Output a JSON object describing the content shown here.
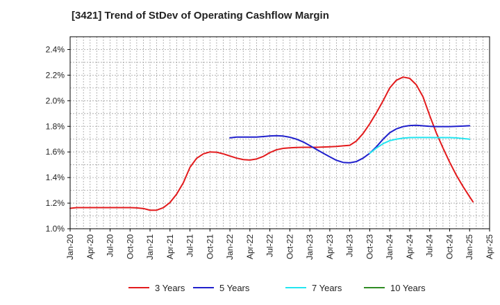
{
  "chart_data": {
    "type": "line",
    "title": "[3421]  Trend of StDev of Operating Cashflow Margin",
    "xlabel": "",
    "ylabel": "",
    "y_tick_labels": [
      "1.0%",
      "1.2%",
      "1.4%",
      "1.6%",
      "1.8%",
      "2.0%",
      "2.2%",
      "2.4%"
    ],
    "y_ticks": [
      1.0,
      1.2,
      1.4,
      1.6,
      1.8,
      2.0,
      2.2,
      2.4
    ],
    "ylim": [
      1.0,
      2.5
    ],
    "x_tick_labels": [
      "Jan-20",
      "Apr-20",
      "Jul-20",
      "Oct-20",
      "Jan-21",
      "Apr-21",
      "Jul-21",
      "Oct-21",
      "Jan-22",
      "Apr-22",
      "Jul-22",
      "Oct-22",
      "Jan-23",
      "Apr-23",
      "Jul-23",
      "Oct-23",
      "Jan-24",
      "Apr-24",
      "Jul-24",
      "Oct-24",
      "Jan-25",
      "Apr-25"
    ],
    "xlim_quarters": [
      0,
      21
    ],
    "grid": true,
    "legend_position": "bottom",
    "series": [
      {
        "name": "3 Years",
        "color": "#e31a1c",
        "points": [
          [
            0,
            1.16
          ],
          [
            0.33,
            1.165
          ],
          [
            0.67,
            1.165
          ],
          [
            1,
            1.165
          ],
          [
            1.33,
            1.165
          ],
          [
            1.67,
            1.165
          ],
          [
            2,
            1.165
          ],
          [
            2.33,
            1.165
          ],
          [
            2.67,
            1.165
          ],
          [
            3,
            1.165
          ],
          [
            3.33,
            1.163
          ],
          [
            3.67,
            1.158
          ],
          [
            4,
            1.145
          ],
          [
            4.33,
            1.145
          ],
          [
            4.67,
            1.165
          ],
          [
            5,
            1.205
          ],
          [
            5.33,
            1.27
          ],
          [
            5.67,
            1.36
          ],
          [
            6,
            1.48
          ],
          [
            6.33,
            1.55
          ],
          [
            6.67,
            1.585
          ],
          [
            7,
            1.6
          ],
          [
            7.33,
            1.598
          ],
          [
            7.67,
            1.585
          ],
          [
            8,
            1.568
          ],
          [
            8.33,
            1.552
          ],
          [
            8.67,
            1.54
          ],
          [
            9,
            1.537
          ],
          [
            9.33,
            1.545
          ],
          [
            9.67,
            1.565
          ],
          [
            10,
            1.595
          ],
          [
            10.33,
            1.617
          ],
          [
            10.67,
            1.628
          ],
          [
            11,
            1.632
          ],
          [
            11.33,
            1.635
          ],
          [
            11.67,
            1.636
          ],
          [
            12,
            1.636
          ],
          [
            12.33,
            1.636
          ],
          [
            12.67,
            1.638
          ],
          [
            13,
            1.64
          ],
          [
            13.33,
            1.643
          ],
          [
            13.67,
            1.648
          ],
          [
            14,
            1.652
          ],
          [
            14.33,
            1.685
          ],
          [
            14.67,
            1.745
          ],
          [
            15,
            1.82
          ],
          [
            15.33,
            1.905
          ],
          [
            15.67,
            2.0
          ],
          [
            16,
            2.1
          ],
          [
            16.33,
            2.16
          ],
          [
            16.67,
            2.185
          ],
          [
            17,
            2.175
          ],
          [
            17.33,
            2.125
          ],
          [
            17.67,
            2.03
          ],
          [
            18,
            1.885
          ],
          [
            18.33,
            1.75
          ],
          [
            18.67,
            1.63
          ],
          [
            19,
            1.52
          ],
          [
            19.33,
            1.42
          ],
          [
            19.67,
            1.33
          ],
          [
            20,
            1.25
          ],
          [
            20.17,
            1.21
          ]
        ]
      },
      {
        "name": "5 Years",
        "color": "#1f1fcc",
        "points": [
          [
            8,
            1.71
          ],
          [
            8.33,
            1.716
          ],
          [
            8.67,
            1.716
          ],
          [
            9,
            1.716
          ],
          [
            9.33,
            1.716
          ],
          [
            9.67,
            1.72
          ],
          [
            10,
            1.725
          ],
          [
            10.33,
            1.727
          ],
          [
            10.67,
            1.724
          ],
          [
            11,
            1.715
          ],
          [
            11.33,
            1.7
          ],
          [
            11.67,
            1.678
          ],
          [
            12,
            1.65
          ],
          [
            12.33,
            1.62
          ],
          [
            12.67,
            1.59
          ],
          [
            13,
            1.562
          ],
          [
            13.33,
            1.535
          ],
          [
            13.67,
            1.518
          ],
          [
            14,
            1.515
          ],
          [
            14.33,
            1.525
          ],
          [
            14.67,
            1.552
          ],
          [
            15,
            1.59
          ],
          [
            15.33,
            1.64
          ],
          [
            15.67,
            1.7
          ],
          [
            16,
            1.75
          ],
          [
            16.33,
            1.78
          ],
          [
            16.67,
            1.798
          ],
          [
            17,
            1.806
          ],
          [
            17.33,
            1.808
          ],
          [
            17.67,
            1.804
          ],
          [
            18,
            1.8
          ],
          [
            18.33,
            1.798
          ],
          [
            18.67,
            1.798
          ],
          [
            19,
            1.798
          ],
          [
            19.33,
            1.8
          ],
          [
            19.67,
            1.802
          ],
          [
            20,
            1.805
          ]
        ]
      },
      {
        "name": "7 Years",
        "color": "#22e5f0",
        "points": [
          [
            15,
            1.59
          ],
          [
            15.33,
            1.63
          ],
          [
            15.67,
            1.665
          ],
          [
            16,
            1.688
          ],
          [
            16.33,
            1.7
          ],
          [
            16.67,
            1.708
          ],
          [
            17,
            1.712
          ],
          [
            17.33,
            1.713
          ],
          [
            17.67,
            1.713
          ],
          [
            18,
            1.713
          ],
          [
            18.33,
            1.712
          ],
          [
            18.67,
            1.712
          ],
          [
            19,
            1.712
          ],
          [
            19.33,
            1.71
          ],
          [
            19.67,
            1.705
          ],
          [
            20,
            1.7
          ]
        ]
      },
      {
        "name": "10 Years",
        "color": "#2e8b22",
        "points": []
      }
    ]
  }
}
